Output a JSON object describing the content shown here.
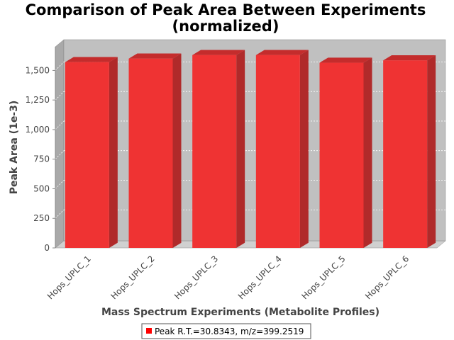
{
  "chart_data": {
    "type": "bar",
    "title": "Comparison of Peak Area Between Experiments",
    "subtitle": "(normalized)",
    "xlabel": "Mass Spectrum Experiments (Metabolite Profiles)",
    "ylabel": "Peak Area (1e-3)",
    "categories": [
      "Hops_UPLC_1",
      "Hops_UPLC_2",
      "Hops_UPLC_3",
      "Hops_UPLC_4",
      "Hops_UPLC_5",
      "Hops_UPLC_6"
    ],
    "series": [
      {
        "name": "Peak R.T.=30.8343, m/z=399.2519",
        "values": [
          1570,
          1600,
          1630,
          1630,
          1565,
          1585
        ],
        "color": "#ff0000"
      }
    ],
    "yticks": [
      0,
      250,
      500,
      750,
      1000,
      1250,
      1500
    ],
    "ytick_labels": [
      "0",
      "250",
      "500",
      "750",
      "1,000",
      "1,250",
      "1,500"
    ],
    "ylim": [
      0,
      1700
    ],
    "grid": true,
    "legend_position": "bottom",
    "plot_background": "#c0c0c0"
  }
}
